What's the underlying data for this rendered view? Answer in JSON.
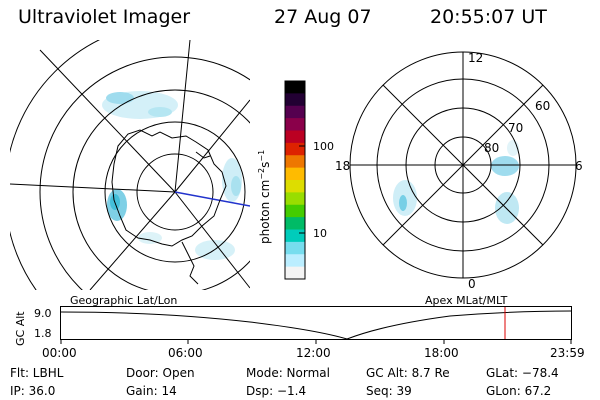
{
  "header": {
    "instrument": "Ultraviolet Imager",
    "date": "27 Aug 07",
    "time": "20:55:07 UT"
  },
  "colorbar": {
    "unit_label": "photon cm",
    "unit_exp1": "−2",
    "unit_mid": "s",
    "unit_exp2": "−1",
    "tick_high": "100",
    "tick_low": "10",
    "colors": [
      "#000000",
      "#220033",
      "#55004f",
      "#8a004a",
      "#bb0022",
      "#dd2200",
      "#ee7700",
      "#ffbb00",
      "#dddd00",
      "#99dd00",
      "#44cc00",
      "#00bb66",
      "#00ccbb",
      "#77ddee",
      "#bbeeff",
      "#f4f4f4"
    ]
  },
  "geographic": {
    "label": "Geographic Lat/Lon"
  },
  "apex": {
    "label": "Apex  MLat/MLT",
    "mlt_top": "12",
    "mlt_left": "18",
    "mlt_right": "6",
    "mlt_bottom": "0",
    "lat_60": "60",
    "lat_70": "70",
    "lat_80": "80"
  },
  "altitude_strip": {
    "ylabel": "GC Alt",
    "ytick_top": "9.0",
    "ytick_bottom": "1.8",
    "x_ticks": [
      "00:00",
      "06:00",
      "12:00",
      "18:00",
      "23:59"
    ]
  },
  "footer": {
    "filter": "Flt: LBHL",
    "door": "Door: Open",
    "mode": "Mode: Normal",
    "gc_alt": "GC Alt: 8.7 Re",
    "glat": "GLat: −78.4",
    "ip": "IP: 36.0",
    "gain": "Gain: 14",
    "dsp": "Dsp:   −1.4",
    "seq": "Seq: 39",
    "glon": "GLon:  67.2"
  }
}
